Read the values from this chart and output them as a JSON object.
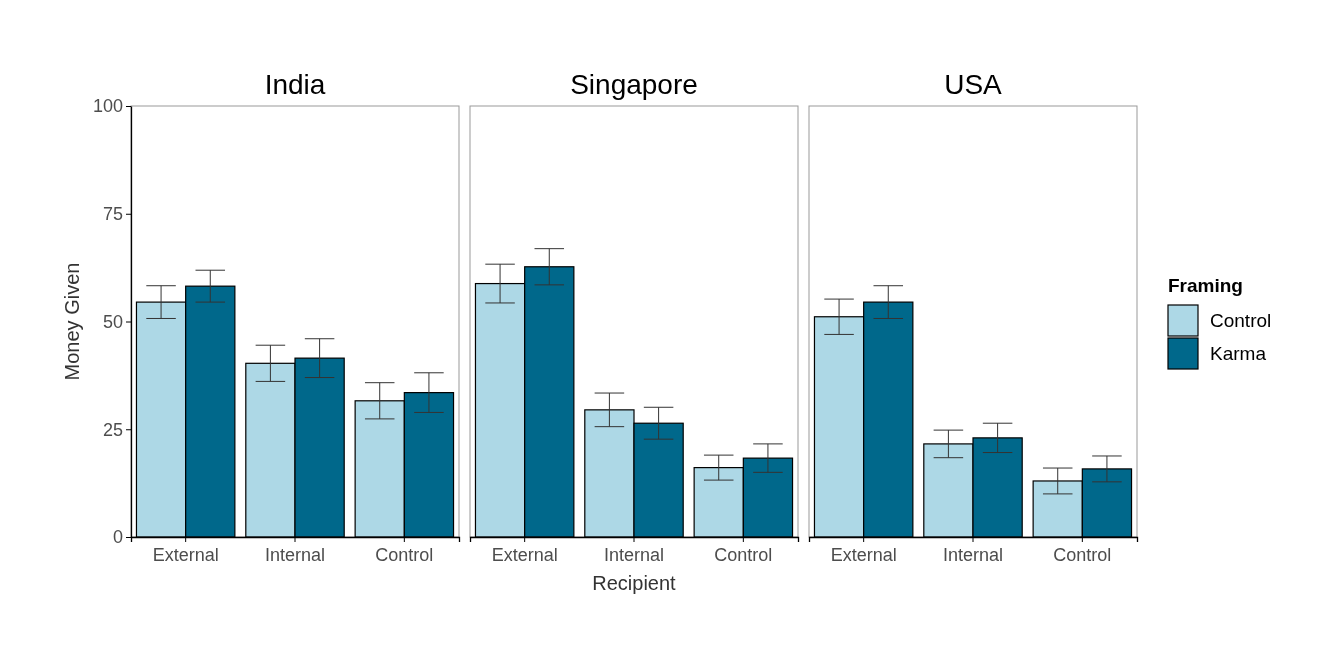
{
  "chart_data": [
    {
      "type": "bar",
      "title": "India",
      "ylabel": "Money Given",
      "categories": [
        "External",
        "Internal",
        "Control"
      ],
      "ylim": [
        0,
        100
      ],
      "yticks": [
        0,
        25,
        50,
        75,
        100
      ],
      "grid": false,
      "legend": false,
      "series": [
        {
          "color": "#add8e6",
          "values": [
            54.5,
            40.3,
            31.6
          ],
          "errors": [
            3.8,
            4.2,
            4.2
          ]
        },
        {
          "color": "#00688b",
          "values": [
            58.2,
            41.5,
            33.5
          ],
          "errors": [
            3.7,
            4.5,
            4.6
          ]
        }
      ]
    },
    {
      "type": "bar",
      "title": "Singapore",
      "xlabel": "Recipient",
      "categories": [
        "External",
        "Internal",
        "Control"
      ],
      "ylim": [
        0,
        100
      ],
      "yticks": [
        0,
        25,
        50,
        75,
        100
      ],
      "grid": false,
      "legend": false,
      "tick_labels": "x",
      "series": [
        {
          "color": "#add8e6",
          "values": [
            58.8,
            29.5,
            16.1
          ],
          "errors": [
            4.5,
            3.9,
            2.9
          ]
        },
        {
          "color": "#00688b",
          "values": [
            62.7,
            26.4,
            18.3
          ],
          "errors": [
            4.2,
            3.7,
            3.3
          ]
        }
      ]
    },
    {
      "type": "bar",
      "title": "USA",
      "categories": [
        "External",
        "Internal",
        "Control"
      ],
      "ylim": [
        0,
        100
      ],
      "yticks": [
        0,
        25,
        50,
        75,
        100
      ],
      "grid": false,
      "legend": "right",
      "legend_title": "Framing",
      "tick_labels": "x",
      "series": [
        {
          "name": "Control",
          "color": "#add8e6",
          "values": [
            51.1,
            21.6,
            13.0
          ],
          "errors": [
            4.1,
            3.2,
            3.0
          ]
        },
        {
          "name": "Karma",
          "color": "#00688b",
          "values": [
            54.5,
            23.0,
            15.8
          ],
          "errors": [
            3.8,
            3.4,
            3.0
          ]
        }
      ]
    }
  ]
}
